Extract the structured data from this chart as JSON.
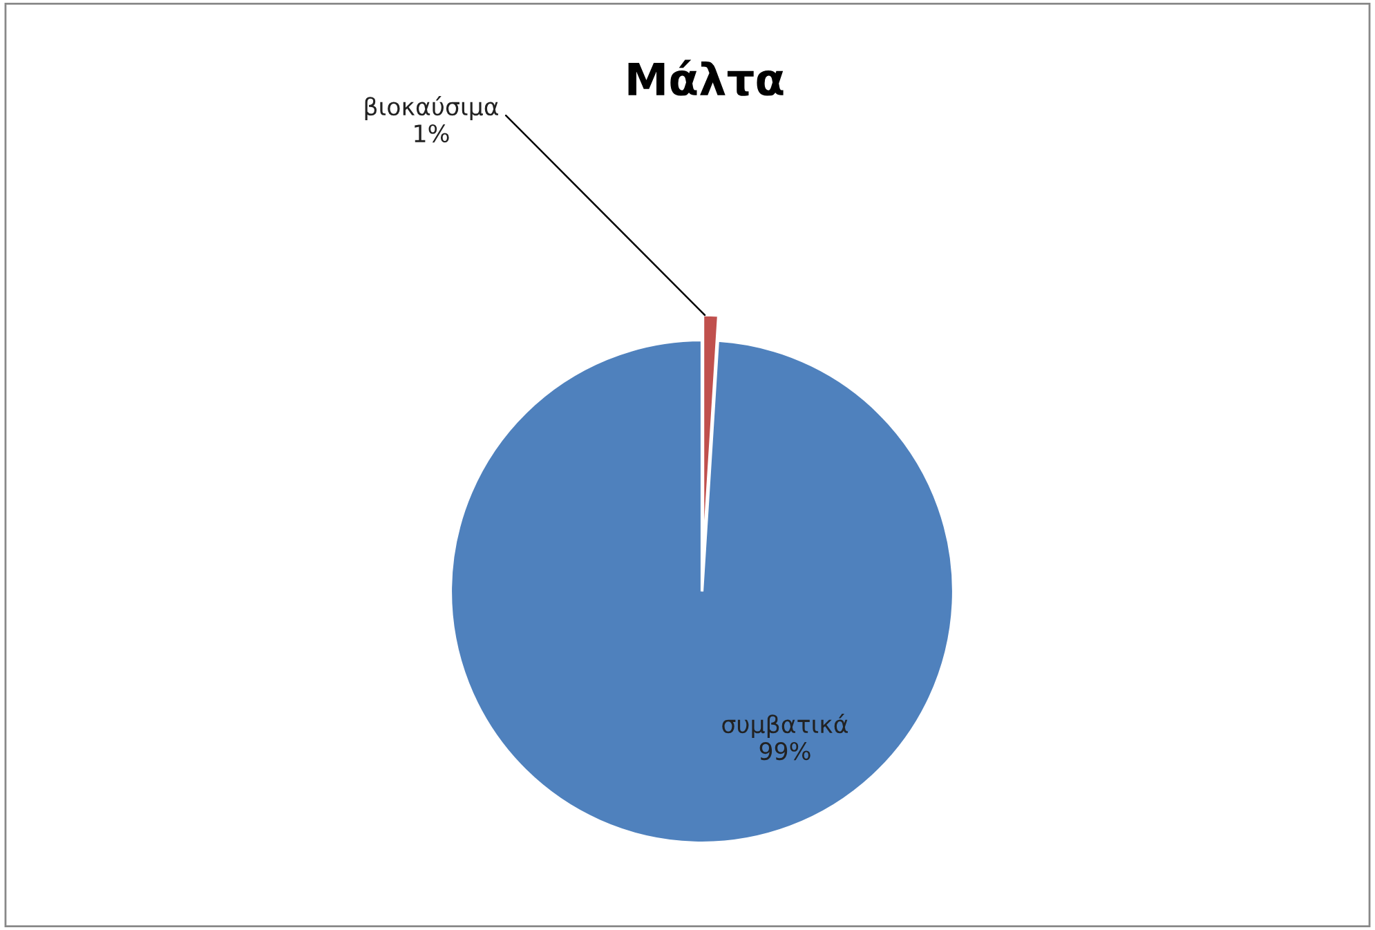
{
  "chart_data": {
    "type": "pie",
    "title": "Μάλτα",
    "categories": [
      "συμβατικά",
      "βιοκαύσιμα"
    ],
    "values": [
      99,
      1
    ],
    "colors": [
      "#4f81bd",
      "#c0504d"
    ],
    "value_labels": [
      "99%",
      "1%"
    ],
    "legend": false
  }
}
